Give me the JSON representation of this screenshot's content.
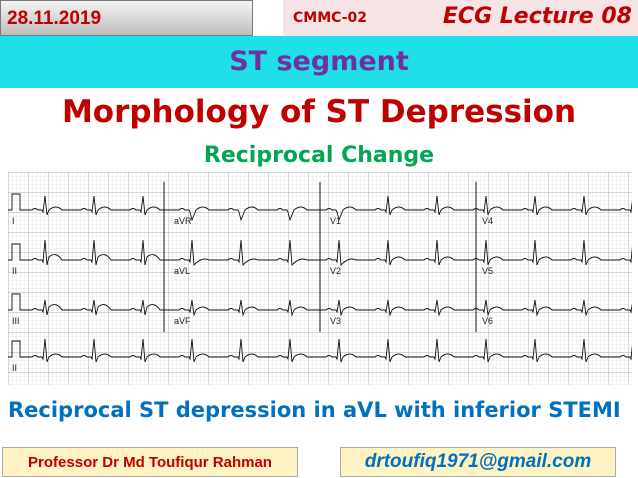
{
  "header": {
    "date": "28.11.2019",
    "code": "CMMC-02",
    "lecture": "ECG Lecture 08",
    "topic": "ST segment"
  },
  "title": "Morphology of ST Depression",
  "subtitle": "Reciprocal Change",
  "ecg": {
    "leads": [
      [
        "I",
        "aVR",
        "V1",
        "V4"
      ],
      [
        "II",
        "aVL",
        "V2",
        "V5"
      ],
      [
        "III",
        "aVF",
        "V3",
        "V6"
      ],
      [
        "II"
      ]
    ]
  },
  "caption": "Reciprocal ST depression in aVL with inferior STEMI",
  "footer": {
    "author": "Professor Dr Md Toufiqur Rahman",
    "email": "drtoufiq1971@gmail.com"
  }
}
